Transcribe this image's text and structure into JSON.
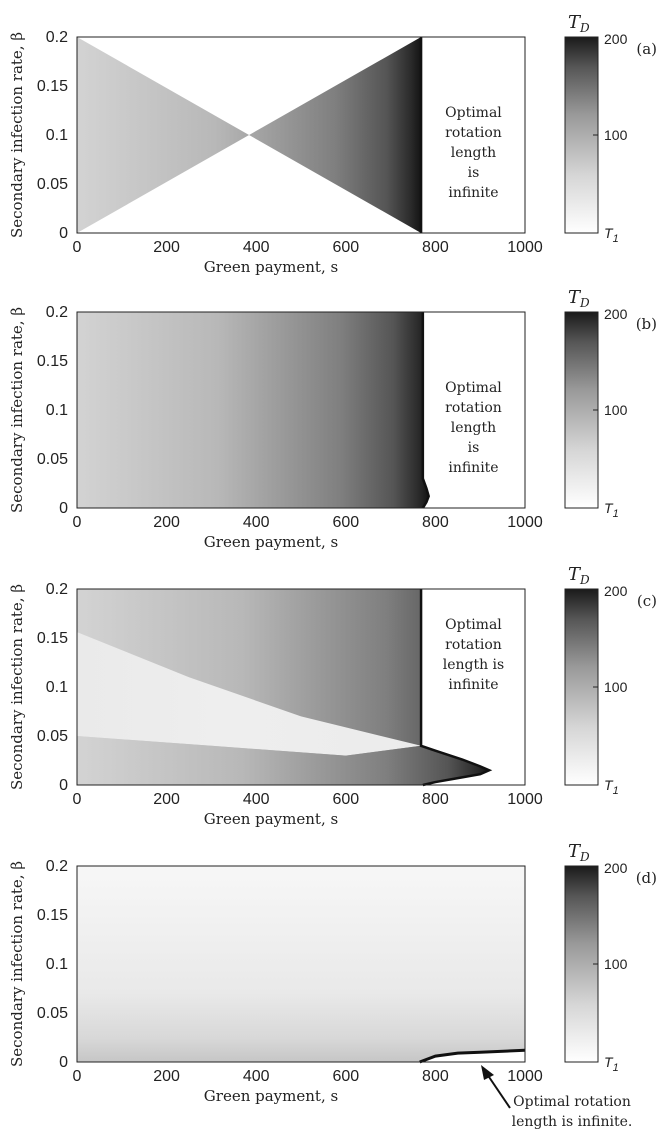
{
  "chart_data": [
    {
      "type": "heatmap",
      "panel": "(a)",
      "ylabel": "Secondary infection rate, β",
      "xlabel": "Green payment, s",
      "xlim": [
        0,
        1000
      ],
      "ylim": [
        0,
        0.2
      ],
      "xticks": [
        "0",
        "200",
        "400",
        "600",
        "800",
        "1000"
      ],
      "yticks": [
        "0",
        "0.05",
        "0.1",
        "0.15",
        "0.2"
      ],
      "colorbar": {
        "title": "T_D",
        "ticks": [
          "200",
          "100",
          "T_1"
        ],
        "range": [
          0,
          200
        ]
      },
      "annotation": [
        "Optimal",
        "rotation",
        "length",
        "is",
        "infinite"
      ],
      "boundary": [
        [
          768,
          0
        ],
        [
          768,
          0.2
        ]
      ]
    },
    {
      "type": "heatmap",
      "panel": "(b)",
      "ylabel": "Secondary infection rate, β",
      "xlabel": "Green payment, s",
      "xlim": [
        0,
        1000
      ],
      "ylim": [
        0,
        0.2
      ],
      "xticks": [
        "0",
        "200",
        "400",
        "600",
        "800",
        "1000"
      ],
      "yticks": [
        "0",
        "0.05",
        "0.1",
        "0.15",
        "0.2"
      ],
      "colorbar": {
        "title": "T_D",
        "ticks": [
          "200",
          "100",
          "T_1"
        ],
        "range": [
          0,
          200
        ]
      },
      "annotation": [
        "Optimal",
        "rotation",
        "length",
        "is",
        "infinite"
      ],
      "boundary": [
        [
          772,
          0.2
        ],
        [
          772,
          0.03
        ],
        [
          780,
          0.02
        ],
        [
          785,
          0.012
        ],
        [
          780,
          0.006
        ],
        [
          772,
          0
        ]
      ]
    },
    {
      "type": "heatmap",
      "panel": "(c)",
      "ylabel": "Secondary infection rate, β",
      "xlabel": "Green payment, s",
      "xlim": [
        0,
        1000
      ],
      "ylim": [
        0,
        0.2
      ],
      "xticks": [
        "0",
        "200",
        "400",
        "600",
        "800",
        "1000"
      ],
      "yticks": [
        "0",
        "0.05",
        "0.1",
        "0.15",
        "0.2"
      ],
      "colorbar": {
        "title": "T_D",
        "ticks": [
          "200",
          "100",
          "T_1"
        ],
        "range": [
          0,
          200
        ]
      },
      "annotation": [
        "Optimal",
        "rotation",
        "length is",
        "infinite"
      ],
      "boundary": [
        [
          768,
          0.2
        ],
        [
          768,
          0.04
        ],
        [
          800,
          0.035
        ],
        [
          860,
          0.026
        ],
        [
          900,
          0.019
        ],
        [
          920,
          0.015
        ],
        [
          900,
          0.011
        ],
        [
          850,
          0.007
        ],
        [
          800,
          0.003
        ],
        [
          772,
          0
        ]
      ]
    },
    {
      "type": "heatmap",
      "panel": "(d)",
      "ylabel": "Secondary infection rate, β",
      "xlabel": "Green payment, s",
      "xlim": [
        0,
        1000
      ],
      "ylim": [
        0,
        0.2
      ],
      "xticks": [
        "0",
        "200",
        "400",
        "600",
        "800",
        "1000"
      ],
      "yticks": [
        "0",
        "0.05",
        "0.1",
        "0.15",
        "0.2"
      ],
      "colorbar": {
        "title": "T_D",
        "ticks": [
          "200",
          "100",
          "T_1"
        ],
        "range": [
          0,
          200
        ]
      },
      "annotation": [
        "Optimal rotation",
        "length is infinite."
      ],
      "boundary": [
        [
          765,
          0
        ],
        [
          800,
          0.006
        ],
        [
          850,
          0.009
        ],
        [
          900,
          0.01
        ],
        [
          1000,
          0.012
        ]
      ]
    }
  ]
}
